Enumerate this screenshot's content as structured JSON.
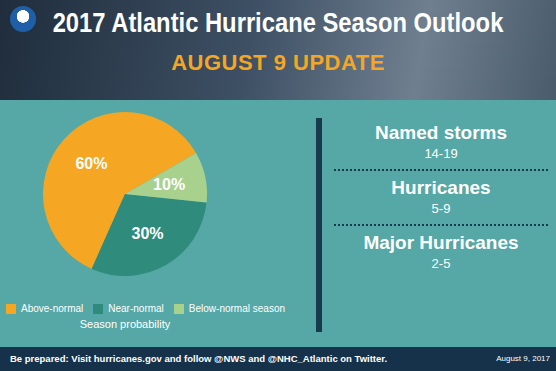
{
  "header": {
    "title": "2017 Atlantic Hurricane Season Outlook",
    "subtitle": "AUGUST 9 UPDATE"
  },
  "chart_data": {
    "type": "pie",
    "categories": [
      "Above-normal",
      "Near-normal",
      "Below-normal season"
    ],
    "values": [
      60,
      30,
      10
    ],
    "value_labels": [
      "60%",
      "30%",
      "10%"
    ],
    "colors": [
      "#f5a623",
      "#2f8c7c",
      "#a9d18e"
    ],
    "data_labels": true,
    "legend": "bottom",
    "caption": "Season probability"
  },
  "stats": [
    {
      "label": "Named storms",
      "value": "14-19"
    },
    {
      "label": "Hurricanes",
      "value": "5-9"
    },
    {
      "label": "Major Hurricanes",
      "value": "2-5"
    }
  ],
  "footer": {
    "text": "Be prepared: Visit hurricanes.gov and follow @NWS and @NHC_Atlantic on Twitter.",
    "date": "August 9, 2017"
  }
}
